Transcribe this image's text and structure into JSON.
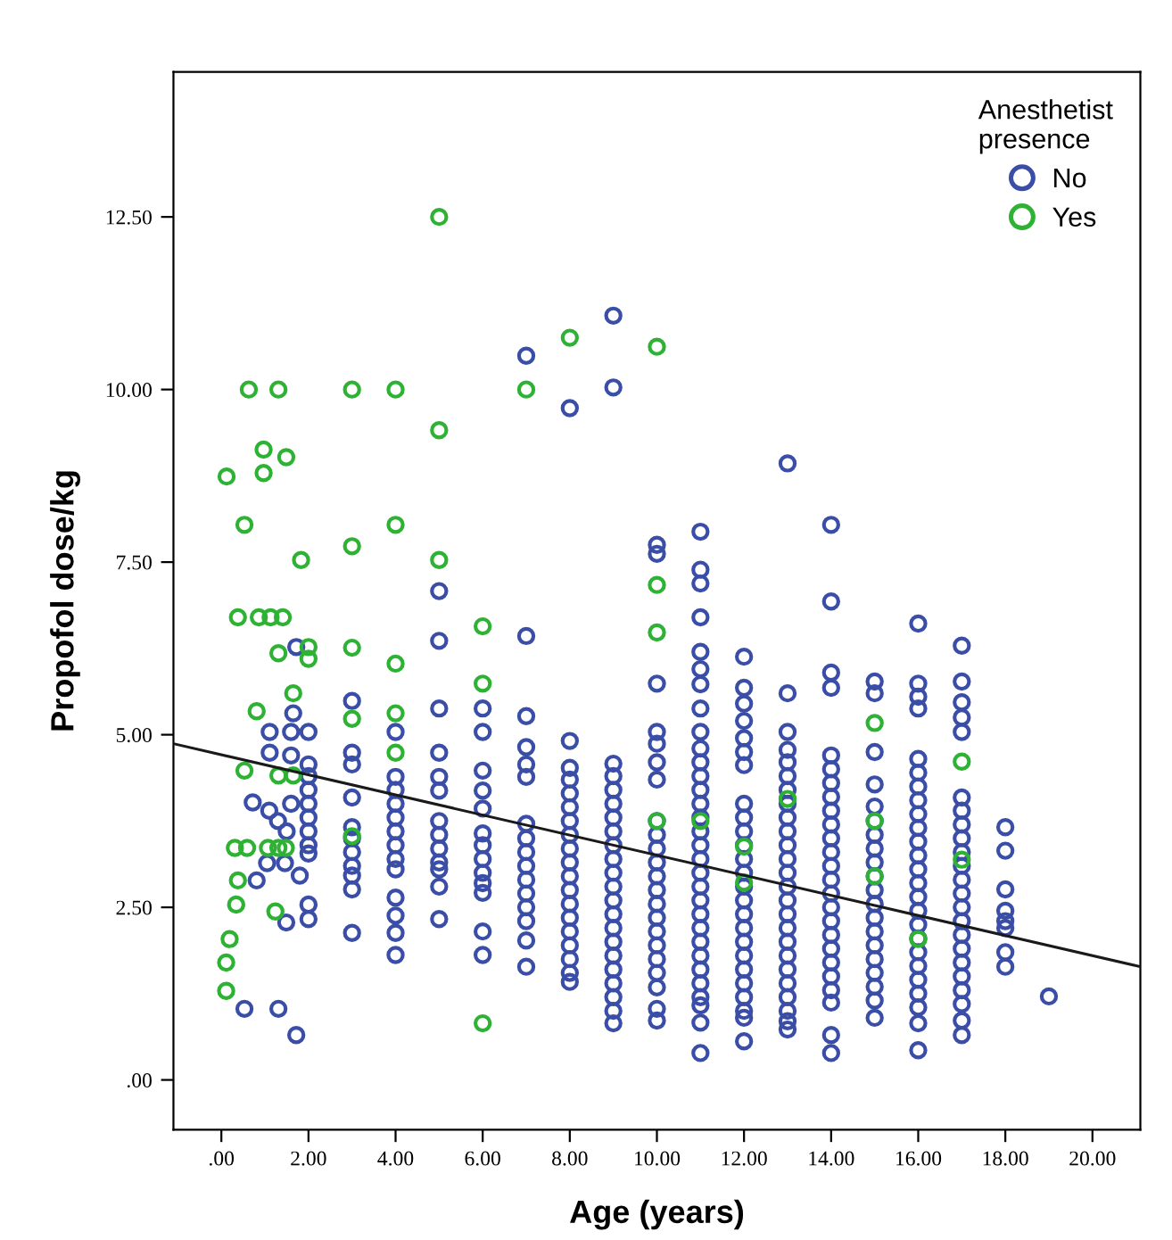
{
  "chart_data": {
    "type": "scatter",
    "xlabel": "Age (years)",
    "ylabel": "Propofol dose/kg",
    "legend_title": "Anesthetist\npresence",
    "xlim": [
      -1.1,
      21.1
    ],
    "ylim": [
      -0.72,
      14.6
    ],
    "xticks": [
      {
        "value": 0,
        "label": ".00"
      },
      {
        "value": 2,
        "label": "2.00"
      },
      {
        "value": 4,
        "label": "4.00"
      },
      {
        "value": 6,
        "label": "6.00"
      },
      {
        "value": 8,
        "label": "8.00"
      },
      {
        "value": 10,
        "label": "10.00"
      },
      {
        "value": 12,
        "label": "12.00"
      },
      {
        "value": 14,
        "label": "14.00"
      },
      {
        "value": 16,
        "label": "16.00"
      },
      {
        "value": 18,
        "label": "18.00"
      },
      {
        "value": 20,
        "label": "20.00"
      }
    ],
    "yticks": [
      {
        "value": 0,
        "label": ".00"
      },
      {
        "value": 2.5,
        "label": "2.50"
      },
      {
        "value": 5,
        "label": "5.00"
      },
      {
        "value": 7.5,
        "label": "7.50"
      },
      {
        "value": 10,
        "label": "10.00"
      },
      {
        "value": 12.5,
        "label": "12.50"
      }
    ],
    "grid": false,
    "legend": "top right",
    "series": [
      {
        "name": "No",
        "color": "#3a4ea8",
        "marker": "circle",
        "x": [
          1.72,
          1.65,
          1.11,
          1.6,
          1.11,
          1.6,
          0.72,
          1.1,
          1.3,
          1.6,
          1.5,
          1.05,
          1.46,
          0.81,
          1.8,
          1.49,
          0.53,
          1.31,
          1.72,
          2,
          2,
          2,
          2,
          2,
          2,
          2,
          2,
          2,
          2,
          2,
          3,
          3,
          3,
          3,
          3,
          3,
          3,
          3,
          3,
          3,
          3,
          4,
          4,
          4,
          4,
          4,
          4,
          4,
          4,
          4,
          4,
          4,
          4,
          4,
          5,
          5,
          5,
          5,
          5,
          5,
          5,
          5,
          5,
          5,
          5,
          5,
          5,
          6,
          6,
          6,
          6,
          6,
          6,
          6,
          6,
          6,
          6,
          6,
          6,
          6,
          7,
          7,
          7,
          7,
          7,
          7,
          7,
          7,
          7,
          7,
          7,
          7,
          7,
          7,
          7,
          7,
          8,
          8,
          8,
          8,
          8,
          8,
          8,
          8,
          8,
          8,
          8,
          8,
          8,
          8,
          8,
          8,
          8,
          8,
          8,
          9,
          9,
          9,
          9,
          9,
          9,
          9,
          9,
          9,
          9,
          9,
          9,
          9,
          9,
          9,
          9,
          9,
          9,
          9,
          9,
          9,
          9,
          10,
          10,
          10,
          10,
          10,
          10,
          10,
          10,
          10,
          10,
          10,
          10,
          10,
          10,
          10,
          10,
          10,
          10,
          10,
          10,
          10,
          10,
          11,
          11,
          11,
          11,
          11,
          11,
          11,
          11,
          11,
          11,
          11,
          11,
          11,
          11,
          11,
          11,
          11,
          11,
          11,
          11,
          11,
          11,
          11,
          11,
          11,
          11,
          11,
          11,
          11,
          11,
          11,
          12,
          12,
          12,
          12,
          12,
          12,
          12,
          12,
          12,
          12,
          12,
          12,
          12,
          12,
          12,
          12,
          12,
          12,
          12,
          12,
          12,
          12,
          12,
          12,
          12,
          13,
          13,
          13,
          13,
          13,
          13,
          13,
          13,
          13,
          13,
          13,
          13,
          13,
          13,
          13,
          13,
          13,
          13,
          13,
          13,
          13,
          13,
          13,
          13,
          13,
          14,
          14,
          14,
          14,
          14,
          14,
          14,
          14,
          14,
          14,
          14,
          14,
          14,
          14,
          14,
          14,
          14,
          14,
          14,
          14,
          14,
          14,
          14,
          14,
          14,
          15,
          15,
          15,
          15,
          15,
          15,
          15,
          15,
          15,
          15,
          15,
          15,
          15,
          15,
          15,
          15,
          15,
          15,
          15,
          15,
          16,
          16,
          16,
          16,
          16,
          16,
          16,
          16,
          16,
          16,
          16,
          16,
          16,
          16,
          16,
          16,
          16,
          16,
          16,
          16,
          16,
          16,
          16,
          16,
          16,
          17,
          17,
          17,
          17,
          17,
          17,
          17,
          17,
          17,
          17,
          17,
          17,
          17,
          17,
          17,
          17,
          17,
          17,
          17,
          17,
          17,
          17,
          17,
          18,
          18,
          18,
          18,
          18,
          18,
          18,
          18,
          19
        ],
        "values": [
          6.27,
          5.31,
          5.04,
          5.04,
          4.74,
          4.7,
          4.02,
          3.9,
          3.75,
          4.0,
          3.6,
          3.14,
          3.14,
          2.89,
          2.96,
          2.28,
          1.03,
          1.03,
          0.65,
          5.04,
          4.57,
          4.4,
          4.2,
          4.0,
          3.8,
          3.6,
          3.4,
          3.28,
          2.54,
          2.33,
          5.49,
          4.74,
          4.57,
          4.09,
          3.66,
          3.5,
          3.3,
          3.1,
          2.96,
          2.76,
          2.13,
          5.04,
          4.39,
          4.2,
          4.0,
          3.8,
          3.6,
          3.4,
          3.2,
          3.05,
          2.64,
          2.38,
          2.13,
          1.81,
          7.08,
          6.36,
          5.38,
          4.74,
          4.39,
          4.19,
          3.75,
          3.55,
          3.35,
          3.15,
          3.05,
          2.8,
          2.33,
          5.38,
          5.04,
          4.48,
          4.19,
          3.93,
          3.57,
          3.4,
          3.2,
          3.0,
          2.85,
          2.71,
          2.15,
          1.81,
          10.49,
          6.43,
          5.27,
          4.82,
          4.57,
          4.39,
          3.71,
          3.5,
          3.3,
          3.1,
          2.9,
          2.7,
          2.5,
          2.3,
          2.02,
          1.64,
          9.73,
          4.91,
          4.52,
          4.35,
          4.15,
          3.95,
          3.75,
          3.55,
          3.35,
          3.15,
          2.95,
          2.75,
          2.55,
          2.35,
          2.15,
          1.95,
          1.75,
          1.55,
          1.42,
          11.07,
          10.03,
          4.58,
          4.4,
          4.2,
          4.0,
          3.8,
          3.6,
          3.4,
          3.2,
          3.0,
          2.8,
          2.6,
          2.4,
          2.2,
          2.0,
          1.8,
          1.6,
          1.4,
          1.2,
          1.0,
          0.82,
          7.75,
          7.62,
          5.74,
          5.04,
          4.87,
          4.6,
          4.35,
          3.75,
          3.55,
          3.35,
          3.15,
          2.95,
          2.75,
          2.55,
          2.35,
          2.15,
          1.95,
          1.75,
          1.55,
          1.34,
          1.03,
          0.86,
          7.94,
          7.39,
          7.19,
          6.7,
          6.2,
          5.95,
          5.73,
          5.38,
          5.04,
          4.8,
          4.6,
          4.4,
          4.2,
          4.0,
          3.8,
          3.6,
          3.4,
          3.2,
          3.0,
          2.8,
          2.6,
          2.4,
          2.2,
          2.0,
          1.8,
          1.6,
          1.4,
          1.2,
          1.08,
          0.83,
          0.39,
          6.13,
          5.68,
          5.45,
          5.2,
          4.95,
          4.75,
          4.56,
          4.0,
          3.8,
          3.6,
          3.4,
          3.2,
          3.0,
          2.8,
          2.6,
          2.4,
          2.2,
          2.0,
          1.8,
          1.6,
          1.4,
          1.2,
          1.0,
          0.9,
          0.56,
          8.93,
          5.6,
          5.04,
          4.78,
          4.6,
          4.4,
          4.2,
          4.0,
          3.8,
          3.6,
          3.4,
          3.2,
          3.0,
          2.8,
          2.6,
          2.4,
          2.2,
          2.0,
          1.8,
          1.6,
          1.4,
          1.2,
          1.0,
          0.85,
          0.73,
          8.04,
          6.93,
          5.9,
          5.68,
          4.7,
          4.5,
          4.3,
          4.1,
          3.9,
          3.7,
          3.5,
          3.3,
          3.1,
          2.9,
          2.7,
          2.5,
          2.3,
          2.1,
          1.9,
          1.7,
          1.5,
          1.3,
          1.12,
          0.65,
          0.39,
          5.77,
          5.6,
          4.75,
          4.28,
          3.96,
          3.75,
          3.55,
          3.35,
          3.15,
          2.95,
          2.75,
          2.55,
          2.35,
          2.15,
          1.95,
          1.75,
          1.55,
          1.35,
          1.15,
          0.9,
          6.61,
          5.74,
          5.55,
          5.38,
          4.65,
          4.45,
          4.25,
          4.05,
          3.85,
          3.65,
          3.45,
          3.25,
          3.05,
          2.85,
          2.65,
          2.45,
          2.25,
          2.05,
          1.85,
          1.65,
          1.45,
          1.25,
          1.05,
          0.82,
          0.43,
          6.29,
          5.77,
          5.47,
          5.25,
          5.04,
          4.09,
          3.9,
          3.7,
          3.5,
          3.3,
          3.1,
          2.9,
          2.7,
          2.5,
          2.3,
          2.1,
          1.9,
          1.7,
          1.5,
          1.3,
          1.1,
          0.86,
          0.65,
          3.66,
          3.32,
          2.76,
          2.45,
          2.3,
          2.2,
          1.85,
          1.64,
          1.21
        ]
      },
      {
        "name": "Yes",
        "color": "#2db233",
        "marker": "circle",
        "x": [
          5,
          0.63,
          1.31,
          3,
          4,
          7,
          8,
          10,
          5,
          0.97,
          1.49,
          0.97,
          0.12,
          0.53,
          4,
          3,
          1.83,
          5,
          0.38,
          0.86,
          1.13,
          1.41,
          6,
          1.31,
          2,
          2,
          3,
          4,
          6,
          1.65,
          0.81,
          3,
          4,
          4,
          0.53,
          1.31,
          1.65,
          3,
          0.31,
          0.59,
          1.07,
          1.31,
          1.48,
          0.38,
          0.34,
          1.24,
          0.19,
          0.11,
          0.11,
          6,
          10,
          10,
          10,
          11,
          12,
          12,
          13,
          15,
          15,
          15,
          16,
          17,
          17
        ],
        "values": [
          12.5,
          10.0,
          10.0,
          10.0,
          10.0,
          10.0,
          10.75,
          10.62,
          9.41,
          9.13,
          9.02,
          8.79,
          8.74,
          8.04,
          8.04,
          7.73,
          7.53,
          7.53,
          6.7,
          6.7,
          6.7,
          6.7,
          6.57,
          6.18,
          6.27,
          6.1,
          6.26,
          6.03,
          5.74,
          5.6,
          5.34,
          5.23,
          5.31,
          4.74,
          4.48,
          4.41,
          4.41,
          3.53,
          3.36,
          3.36,
          3.36,
          3.36,
          3.36,
          2.89,
          2.54,
          2.44,
          2.04,
          1.7,
          1.29,
          0.82,
          7.17,
          6.48,
          3.75,
          3.75,
          3.38,
          2.86,
          4.07,
          5.17,
          3.75,
          2.95,
          2.04,
          4.61,
          3.19
        ]
      },
      {
        "type": "line",
        "color": "#1a1a1a",
        "x": [
          -1.1,
          21.1
        ],
        "values": [
          4.87,
          1.64
        ]
      }
    ]
  }
}
